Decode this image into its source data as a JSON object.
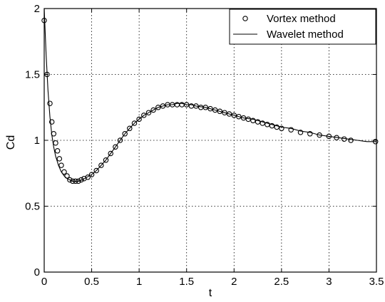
{
  "chart_data": {
    "type": "line",
    "title": "",
    "xlabel": "t",
    "ylabel": "Cd",
    "xlim": [
      0,
      3.5
    ],
    "ylim": [
      0,
      2
    ],
    "xticks": [
      "0",
      "0.5",
      "1",
      "1.5",
      "2",
      "2.5",
      "3",
      "3.5"
    ],
    "yticks": [
      "0",
      "0.5",
      "1",
      "1.5",
      "2"
    ],
    "grid": true,
    "legend_position": "top-right",
    "series": [
      {
        "name": "Vortex method",
        "style": "open-circle-markers",
        "color": "#000000",
        "x": [
          0,
          0.03,
          0.06,
          0.08,
          0.1,
          0.12,
          0.14,
          0.16,
          0.18,
          0.21,
          0.24,
          0.27,
          0.3,
          0.33,
          0.36,
          0.39,
          0.42,
          0.46,
          0.5,
          0.55,
          0.6,
          0.65,
          0.7,
          0.75,
          0.8,
          0.85,
          0.9,
          0.95,
          1.0,
          1.05,
          1.1,
          1.15,
          1.2,
          1.25,
          1.3,
          1.35,
          1.4,
          1.45,
          1.5,
          1.55,
          1.6,
          1.65,
          1.7,
          1.75,
          1.8,
          1.85,
          1.9,
          1.95,
          2.0,
          2.05,
          2.1,
          2.15,
          2.2,
          2.25,
          2.3,
          2.35,
          2.4,
          2.45,
          2.5,
          2.6,
          2.7,
          2.8,
          2.9,
          3.0,
          3.08,
          3.16,
          3.23,
          3.49
        ],
        "y": [
          1.91,
          1.5,
          1.28,
          1.14,
          1.05,
          0.98,
          0.92,
          0.86,
          0.81,
          0.76,
          0.73,
          0.7,
          0.69,
          0.69,
          0.69,
          0.7,
          0.71,
          0.72,
          0.74,
          0.77,
          0.81,
          0.85,
          0.9,
          0.95,
          1.0,
          1.05,
          1.09,
          1.13,
          1.16,
          1.19,
          1.21,
          1.23,
          1.25,
          1.26,
          1.27,
          1.27,
          1.27,
          1.27,
          1.27,
          1.26,
          1.26,
          1.25,
          1.25,
          1.24,
          1.23,
          1.22,
          1.21,
          1.2,
          1.19,
          1.18,
          1.17,
          1.16,
          1.15,
          1.14,
          1.13,
          1.12,
          1.11,
          1.1,
          1.09,
          1.08,
          1.06,
          1.05,
          1.04,
          1.03,
          1.02,
          1.01,
          1.0,
          0.99
        ]
      },
      {
        "name": "Wavelet method",
        "style": "solid-line",
        "color": "#000000",
        "x": [
          0,
          0.02,
          0.04,
          0.06,
          0.08,
          0.1,
          0.12,
          0.15,
          0.18,
          0.21,
          0.24,
          0.27,
          0.3,
          0.33,
          0.36,
          0.4,
          0.45,
          0.5,
          0.55,
          0.6,
          0.65,
          0.7,
          0.75,
          0.8,
          0.85,
          0.9,
          0.95,
          1.0,
          1.05,
          1.1,
          1.15,
          1.2,
          1.25,
          1.3,
          1.35,
          1.4,
          1.45,
          1.5,
          1.55,
          1.6,
          1.7,
          1.8,
          1.9,
          2.0,
          2.1,
          2.2,
          2.3,
          2.4,
          2.5,
          2.6,
          2.7,
          2.8,
          2.9,
          3.0,
          3.1,
          3.2,
          3.3,
          3.4,
          3.5
        ],
        "y": [
          2.0,
          1.65,
          1.38,
          1.18,
          1.04,
          0.95,
          0.88,
          0.81,
          0.76,
          0.73,
          0.71,
          0.7,
          0.69,
          0.69,
          0.69,
          0.7,
          0.72,
          0.74,
          0.77,
          0.81,
          0.85,
          0.9,
          0.95,
          1.0,
          1.05,
          1.09,
          1.13,
          1.16,
          1.19,
          1.21,
          1.23,
          1.25,
          1.26,
          1.27,
          1.27,
          1.28,
          1.28,
          1.27,
          1.27,
          1.26,
          1.25,
          1.23,
          1.21,
          1.19,
          1.17,
          1.16,
          1.14,
          1.12,
          1.1,
          1.09,
          1.07,
          1.06,
          1.04,
          1.03,
          1.02,
          1.01,
          1.0,
          0.99,
          0.99
        ]
      }
    ]
  }
}
